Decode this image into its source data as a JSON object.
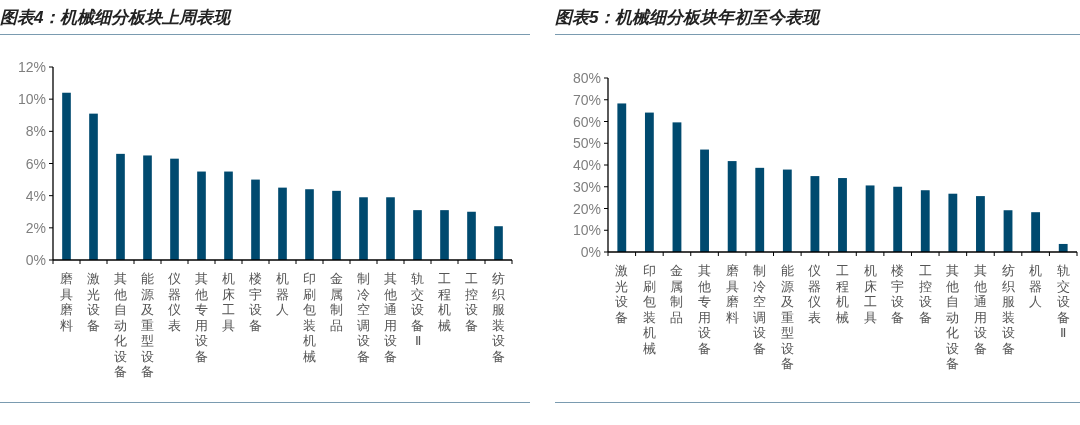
{
  "chart_data": [
    {
      "type": "bar",
      "title": "图表4：机械细分板块上周表现",
      "categories": [
        "磨具磨料",
        "激光设备",
        "其他自动化设备",
        "能源及重型设备",
        "仪器仪表",
        "其他专用设备",
        "机床工具",
        "楼宇设备",
        "机器人",
        "印刷包装机械",
        "金属制品",
        "制冷空调设备",
        "其他通用设备",
        "轨交设备Ⅱ",
        "工程机械",
        "工控设备",
        "纺织服装设备"
      ],
      "values": [
        10.4,
        9.1,
        6.6,
        6.5,
        6.3,
        5.5,
        5.5,
        5.0,
        4.5,
        4.4,
        4.3,
        3.9,
        3.9,
        3.1,
        3.1,
        3.0,
        2.1
      ],
      "color": "#004a6f",
      "ylim": [
        0,
        12
      ],
      "yticks": [
        {
          "value": 0,
          "label": "0%"
        },
        {
          "value": 2,
          "label": "2%"
        },
        {
          "value": 4,
          "label": "4%"
        },
        {
          "value": 6,
          "label": "6%"
        },
        {
          "value": 8,
          "label": "8%"
        },
        {
          "value": 10,
          "label": "10%"
        },
        {
          "value": 12,
          "label": "12%"
        }
      ]
    },
    {
      "type": "bar",
      "title": "图表5：机械细分板块年初至今表现",
      "categories": [
        "激光设备",
        "印刷包装机械",
        "金属制品",
        "其他专用设备",
        "磨具磨料",
        "制冷空调设备",
        "能源及重型设备",
        "仪器仪表",
        "工程机械",
        "机床工具",
        "楼宇设备",
        "工控设备",
        "其他自动化设备",
        "其他通用设备",
        "纺织服装设备",
        "机器人",
        "轨交设备Ⅱ"
      ],
      "values": [
        68.3,
        64.1,
        59.6,
        47.1,
        41.8,
        38.7,
        37.9,
        34.9,
        34.0,
        30.6,
        30.0,
        28.4,
        26.8,
        25.7,
        19.2,
        18.3,
        3.7
      ],
      "color": "#004a6f",
      "ylim": [
        0,
        80
      ],
      "yticks": [
        {
          "value": 0,
          "label": "0%"
        },
        {
          "value": 10,
          "label": "10%"
        },
        {
          "value": 20,
          "label": "20%"
        },
        {
          "value": 30,
          "label": "30%"
        },
        {
          "value": 40,
          "label": "40%"
        },
        {
          "value": 50,
          "label": "50%"
        },
        {
          "value": 60,
          "label": "60%"
        },
        {
          "value": 70,
          "label": "70%"
        },
        {
          "value": 80,
          "label": "80%"
        }
      ]
    }
  ]
}
